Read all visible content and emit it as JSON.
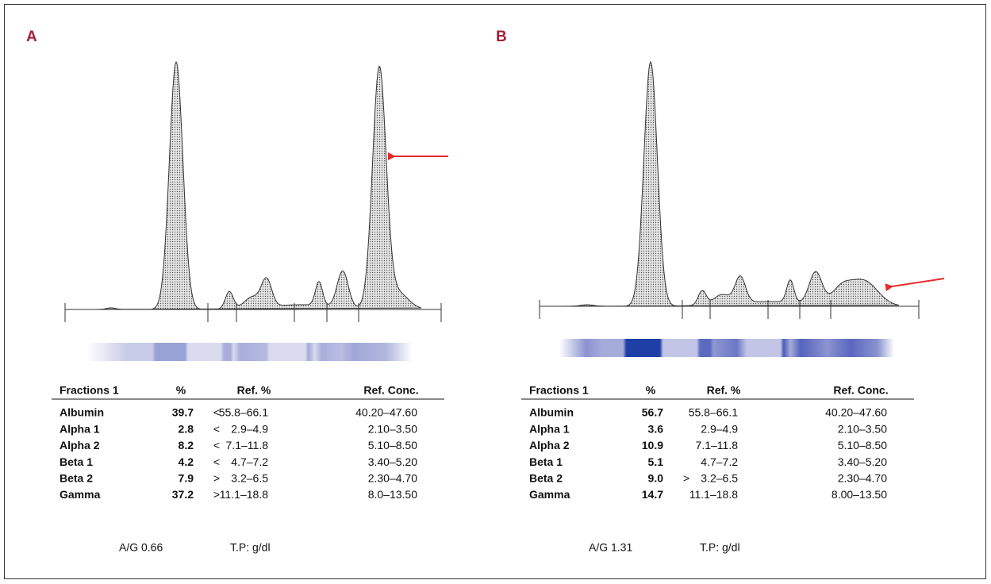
{
  "panels": [
    {
      "label": "A",
      "table": {
        "header": {
          "fraction": "Fractions 1",
          "percent": "%",
          "ref_percent": "Ref. %",
          "ref_conc": "Ref. Conc."
        },
        "rows": [
          {
            "fraction": "Albumin",
            "percent": "39.7",
            "flag": "<",
            "ref_percent": "55.8–66.1",
            "ref_conc": "40.20–47.60"
          },
          {
            "fraction": "Alpha 1",
            "percent": "2.8",
            "flag": "<",
            "ref_percent": "2.9–4.9",
            "ref_conc": "2.10–3.50"
          },
          {
            "fraction": "Alpha 2",
            "percent": "8.2",
            "flag": "<",
            "ref_percent": "7.1–11.8",
            "ref_conc": "5.10–8.50"
          },
          {
            "fraction": "Beta 1",
            "percent": "4.2",
            "flag": "<",
            "ref_percent": "4.7–7.2",
            "ref_conc": "3.40–5.20"
          },
          {
            "fraction": "Beta 2",
            "percent": "7.9",
            "flag": ">",
            "ref_percent": "3.2–6.5",
            "ref_conc": "2.30–4.70"
          },
          {
            "fraction": "Gamma",
            "percent": "37.2",
            "flag": ">",
            "ref_percent": "11.1–18.8",
            "ref_conc": "8.0–13.50"
          }
        ]
      },
      "footer": {
        "ag": "A/G 0.66",
        "tp": "T.P: g/dl"
      }
    },
    {
      "label": "B",
      "table": {
        "header": {
          "fraction": "Fractions 1",
          "percent": "%",
          "ref_percent": "Ref. %",
          "ref_conc": "Ref. Conc."
        },
        "rows": [
          {
            "fraction": "Albumin",
            "percent": "56.7",
            "ref_percent": "55.8–66.1",
            "ref_conc": "40.20–47.60"
          },
          {
            "fraction": "Alpha 1",
            "percent": "3.6",
            "ref_percent": "2.9–4.9",
            "ref_conc": "2.10–3.50"
          },
          {
            "fraction": "Alpha 2",
            "percent": "10.9",
            "ref_percent": "7.1–11.8",
            "ref_conc": "5.10–8.50"
          },
          {
            "fraction": "Beta 1",
            "percent": "5.1",
            "ref_percent": "4.7–7.2",
            "ref_conc": "3.40–5.20"
          },
          {
            "fraction": "Beta 2",
            "percent": "9.0",
            "flag": ">",
            "ref_percent": "3.2–6.5",
            "ref_conc": "2.30–4.70"
          },
          {
            "fraction": "Gamma",
            "percent": "14.7",
            "ref_percent": "11.1–18.8",
            "ref_conc": "8.00–13.50"
          }
        ]
      },
      "footer": {
        "ag": "A/G 1.31",
        "tp": "T.P: g/dl"
      }
    }
  ]
}
